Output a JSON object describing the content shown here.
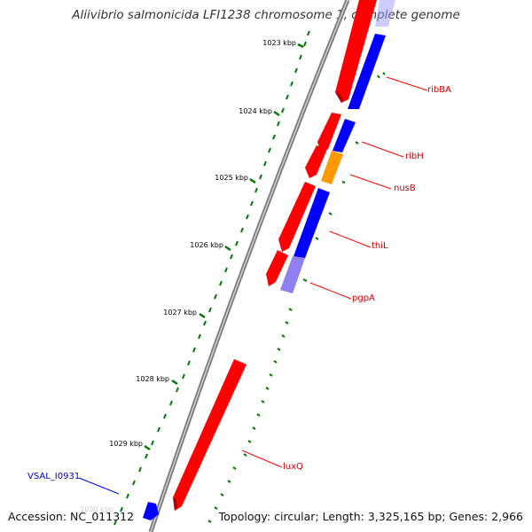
{
  "title": "Aliivibrio salmonicida LFI1238 chromosome 1, complete genome",
  "footer": {
    "accession": "Accession: NC_011312",
    "summary": "Topology: circular; Length: 3,325,165 bp; Genes: 2,966"
  },
  "ticks": [
    "1023 kbp",
    "1024 kbp",
    "1025 kbp",
    "1026 kbp",
    "1027 kbp",
    "1028 kbp",
    "1029 kbp",
    "1030 kbp"
  ],
  "gene_labels": [
    "ribBA",
    "ribH",
    "nusB",
    "thiL",
    "pgpA",
    "luxQ",
    "VSAL_I0931"
  ],
  "colors": {
    "forward_cds": "#ff0000",
    "reverse_cds": "#0000ff",
    "orange_cds": "#ff9900",
    "light_blue_cds": "#7b68ee",
    "backbone": "#808080",
    "tick": "#006600",
    "label_line_red": "#ff0000",
    "label_line_blue": "#0000ff"
  }
}
